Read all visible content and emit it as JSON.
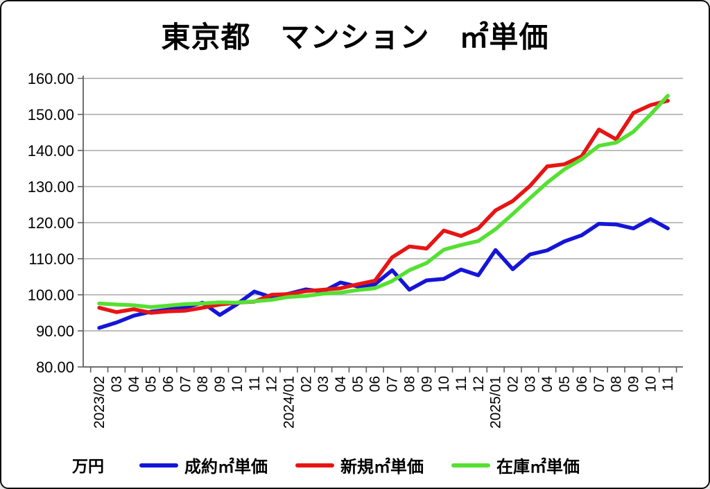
{
  "title": "東京都　マンション　㎡単価",
  "colors": {
    "contract_blue": "#1515d8",
    "new_red": "#e81414",
    "stock_green": "#55e032",
    "grid": "#a8a8a8",
    "axis": "#5f5f5f",
    "text": "#000000"
  },
  "chart_data": {
    "type": "line",
    "title": "東京都　マンション　㎡単価",
    "ylabel": "万円",
    "xlabel": "",
    "ylim": [
      80,
      160
    ],
    "grid": true,
    "legend_position": "bottom",
    "y_ticks": [
      "160.00",
      "150.00",
      "140.00",
      "130.00",
      "120.00",
      "110.00",
      "100.00",
      "90.00",
      "80.00"
    ],
    "categories": [
      "2023/02",
      "03",
      "04",
      "05",
      "06",
      "07",
      "08",
      "09",
      "10",
      "11",
      "12",
      "2024/01",
      "02",
      "03",
      "04",
      "05",
      "06",
      "07",
      "08",
      "09",
      "10",
      "11",
      "12",
      "2025/01",
      "02",
      "03",
      "04",
      "05",
      "06",
      "07",
      "08",
      "09",
      "10",
      "11"
    ],
    "series": [
      {
        "name": "成約㎡単価",
        "color": "#1515d8",
        "values": [
          90.8,
          92.3,
          94.2,
          95.3,
          95.9,
          96.5,
          97.8,
          94.4,
          97.4,
          100.9,
          99.3,
          100.3,
          101.5,
          100.9,
          103.4,
          102.3,
          102.9,
          106.8,
          101.4,
          104.0,
          104.4,
          107.0,
          105.4,
          112.4,
          107.1,
          111.2,
          112.3,
          114.8,
          116.5,
          119.7,
          119.5,
          118.4,
          121.0,
          118.4
        ]
      },
      {
        "name": "新規㎡単価",
        "color": "#e81414",
        "values": [
          96.4,
          95.2,
          96.0,
          95.0,
          95.4,
          95.6,
          96.4,
          97.3,
          97.8,
          98.1,
          100.0,
          100.2,
          101.0,
          101.4,
          101.8,
          102.9,
          103.9,
          110.4,
          113.4,
          112.8,
          117.8,
          116.3,
          118.4,
          123.4,
          126.0,
          130.2,
          135.6,
          136.2,
          138.4,
          145.8,
          143.1,
          150.4,
          152.6,
          153.8
        ]
      },
      {
        "name": "在庫㎡単価",
        "color": "#55e032",
        "values": [
          97.6,
          97.3,
          97.1,
          96.6,
          97.0,
          97.4,
          97.6,
          97.9,
          97.8,
          98.2,
          98.6,
          99.4,
          99.7,
          100.3,
          100.6,
          101.3,
          101.8,
          103.8,
          106.8,
          108.8,
          112.5,
          113.8,
          114.9,
          118.2,
          122.4,
          126.8,
          131.1,
          134.8,
          137.6,
          141.3,
          142.2,
          145.2,
          150.0,
          155.2
        ]
      }
    ]
  }
}
